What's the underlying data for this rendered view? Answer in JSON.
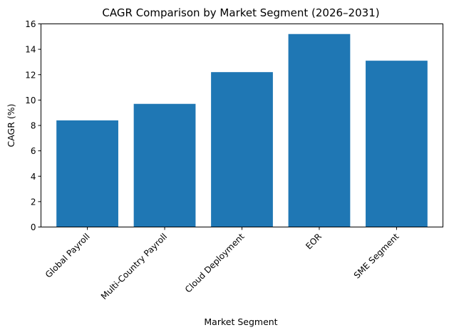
{
  "chart_data": {
    "type": "bar",
    "title": "CAGR Comparison by Market Segment (2026–2031)",
    "xlabel": "Market Segment",
    "ylabel": "CAGR (%)",
    "categories": [
      "Global Payroll",
      "Multi-Country Payroll",
      "Cloud Deployment",
      "EOR",
      "SME Segment"
    ],
    "values": [
      8.4,
      9.7,
      12.2,
      15.2,
      13.1
    ],
    "ylim": [
      0,
      16
    ],
    "yticks": [
      0,
      2,
      4,
      6,
      8,
      10,
      12,
      14,
      16
    ],
    "bar_color": "#1f77b4",
    "grid": false,
    "legend": "none"
  }
}
